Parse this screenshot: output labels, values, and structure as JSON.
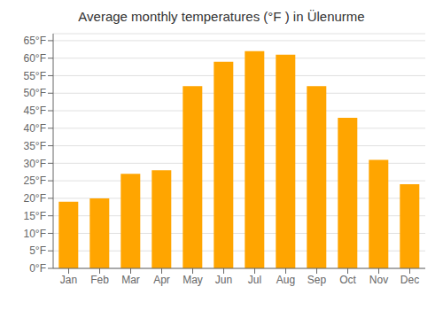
{
  "chart_data": {
    "type": "bar",
    "title": "Average monthly temperatures (°F ) in Ülenurme",
    "categories": [
      "Jan",
      "Feb",
      "Mar",
      "Apr",
      "May",
      "Jun",
      "Jul",
      "Aug",
      "Sep",
      "Oct",
      "Nov",
      "Dec"
    ],
    "values": [
      19,
      20,
      27,
      28,
      52,
      59,
      62,
      61,
      52,
      43,
      31,
      24
    ],
    "color": "#FFA500",
    "ylim": [
      0,
      67
    ],
    "yticks": [
      {
        "value": 0,
        "label": "0°F"
      },
      {
        "value": 5,
        "label": "5°F"
      },
      {
        "value": 10,
        "label": "10°F"
      },
      {
        "value": 15,
        "label": "15°F"
      },
      {
        "value": 20,
        "label": "20°F"
      },
      {
        "value": 25,
        "label": "25°F"
      },
      {
        "value": 30,
        "label": "30°F"
      },
      {
        "value": 35,
        "label": "35°F"
      },
      {
        "value": 40,
        "label": "40°F"
      },
      {
        "value": 45,
        "label": "45°F"
      },
      {
        "value": 50,
        "label": "50°F"
      },
      {
        "value": 55,
        "label": "55°F"
      },
      {
        "value": 60,
        "label": "60°F"
      },
      {
        "value": 65,
        "label": "65°F"
      }
    ],
    "grid": true
  }
}
